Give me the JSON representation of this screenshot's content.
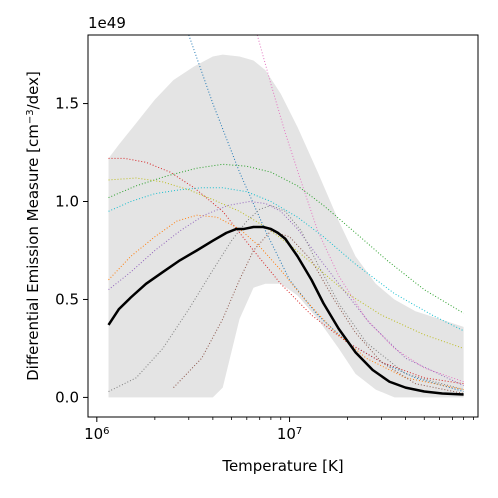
{
  "chart_data": {
    "type": "line",
    "xlabel": "Temperature [K]",
    "ylabel": "Differential Emission Measure [cm^-3/dex]",
    "ylabel_prefix": "Differential Emission Measure [cm",
    "ylabel_sup": "−3",
    "ylabel_suffix": "/dex]",
    "y_offset_text": "1e49",
    "x_scale": "log",
    "xlim": [
      900000,
      95000000
    ],
    "ylim": [
      -0.1,
      1.85
    ],
    "x_ticks": [
      {
        "value": 1000000,
        "base": "10",
        "exp": "6"
      },
      {
        "value": 10000000,
        "base": "10",
        "exp": "7"
      }
    ],
    "y_ticks": [
      {
        "value": 0.0,
        "label": "0.0"
      },
      {
        "value": 0.5,
        "label": "0.5"
      },
      {
        "value": 1.0,
        "label": "1.0"
      },
      {
        "value": 1.5,
        "label": "1.5"
      }
    ],
    "grid": false,
    "band": {
      "color": "#e4e4e4",
      "x": [
        1150000,
        1300000,
        1600000,
        2000000,
        2500000,
        3200000,
        4000000,
        4500000,
        5500000,
        6500000,
        7500000,
        9000000,
        11000000,
        14000000,
        18000000,
        22000000,
        28000000,
        35000000,
        45000000,
        60000000,
        80000000
      ],
      "upper": [
        1.22,
        1.29,
        1.4,
        1.52,
        1.62,
        1.69,
        1.74,
        1.75,
        1.74,
        1.72,
        1.67,
        1.55,
        1.38,
        1.15,
        0.9,
        0.72,
        0.58,
        0.5,
        0.44,
        0.4,
        0.36
      ],
      "lower": [
        0.0,
        0.0,
        0.0,
        0.0,
        0.0,
        0.0,
        0.0,
        0.05,
        0.4,
        0.56,
        0.58,
        0.58,
        0.52,
        0.4,
        0.25,
        0.12,
        0.04,
        0.0,
        0.0,
        0.0,
        0.0
      ]
    },
    "mean": {
      "color": "#000000",
      "x": [
        1150000,
        1300000,
        1500000,
        1800000,
        2200000,
        2700000,
        3300000,
        4000000,
        4700000,
        5300000,
        5800000,
        6500000,
        7300000,
        8000000,
        8700000,
        9500000,
        11000000,
        13000000,
        15000000,
        18000000,
        22000000,
        27000000,
        33000000,
        40000000,
        50000000,
        62000000,
        80000000
      ],
      "y": [
        0.37,
        0.45,
        0.51,
        0.58,
        0.64,
        0.7,
        0.75,
        0.8,
        0.84,
        0.86,
        0.86,
        0.87,
        0.87,
        0.86,
        0.84,
        0.81,
        0.72,
        0.6,
        0.48,
        0.35,
        0.23,
        0.14,
        0.08,
        0.05,
        0.03,
        0.02,
        0.015
      ]
    },
    "series": [
      {
        "color": "#1f77b4",
        "x": [
          3000000,
          4000000,
          5500000,
          7500000,
          10000000,
          14000000,
          20000000,
          30000000,
          45000000,
          80000000
        ],
        "y": [
          1.85,
          1.5,
          1.15,
          0.85,
          0.6,
          0.42,
          0.28,
          0.18,
          0.1,
          0.03
        ]
      },
      {
        "color": "#e377c2",
        "x": [
          6800000,
          8000000,
          9500000,
          11500000,
          14000000,
          18000000,
          25000000,
          35000000,
          50000000,
          80000000
        ],
        "y": [
          1.85,
          1.6,
          1.35,
          1.1,
          0.85,
          0.62,
          0.4,
          0.25,
          0.15,
          0.08
        ]
      },
      {
        "color": "#d62728",
        "x": [
          1150000,
          1400000,
          1800000,
          2400000,
          3200000,
          4500000,
          6500000,
          9000000,
          13000000,
          20000000,
          30000000,
          50000000,
          80000000
        ],
        "y": [
          1.22,
          1.22,
          1.2,
          1.15,
          1.07,
          0.95,
          0.75,
          0.58,
          0.42,
          0.28,
          0.18,
          0.1,
          0.07
        ]
      },
      {
        "color": "#2ca02c",
        "x": [
          1150000,
          1600000,
          2300000,
          3300000,
          4500000,
          6000000,
          8000000,
          11000000,
          15000000,
          22000000,
          32000000,
          50000000,
          80000000
        ],
        "y": [
          1.02,
          1.08,
          1.13,
          1.17,
          1.19,
          1.18,
          1.15,
          1.08,
          0.98,
          0.84,
          0.7,
          0.55,
          0.43
        ]
      },
      {
        "color": "#bcbd22",
        "x": [
          1150000,
          1600000,
          2200000,
          3000000,
          4000000,
          5500000,
          7500000,
          10000000,
          14000000,
          20000000,
          30000000,
          50000000,
          80000000
        ],
        "y": [
          1.11,
          1.12,
          1.1,
          1.06,
          1.01,
          0.95,
          0.87,
          0.78,
          0.66,
          0.53,
          0.42,
          0.32,
          0.25
        ]
      },
      {
        "color": "#17becf",
        "x": [
          1150000,
          1500000,
          2000000,
          2700000,
          3500000,
          4500000,
          6000000,
          8000000,
          11000000,
          15000000,
          22000000,
          35000000,
          55000000,
          80000000
        ],
        "y": [
          0.95,
          1.0,
          1.04,
          1.06,
          1.07,
          1.07,
          1.05,
          1.0,
          0.92,
          0.82,
          0.68,
          0.53,
          0.42,
          0.34
        ]
      },
      {
        "color": "#ff7f0e",
        "x": [
          1150000,
          1500000,
          2000000,
          2600000,
          3300000,
          4200000,
          5500000,
          7000000,
          9000000,
          12000000,
          17000000,
          25000000,
          40000000,
          80000000
        ],
        "y": [
          0.6,
          0.72,
          0.82,
          0.9,
          0.93,
          0.92,
          0.86,
          0.77,
          0.65,
          0.5,
          0.34,
          0.2,
          0.1,
          0.04
        ]
      },
      {
        "color": "#9467bd",
        "x": [
          1150000,
          1500000,
          2000000,
          2700000,
          3600000,
          4800000,
          6200000,
          7500000,
          9000000,
          11000000,
          14000000,
          19000000,
          26000000,
          40000000,
          80000000
        ],
        "y": [
          0.55,
          0.64,
          0.75,
          0.85,
          0.93,
          0.98,
          1.0,
          0.99,
          0.95,
          0.86,
          0.72,
          0.55,
          0.38,
          0.2,
          0.06
        ]
      },
      {
        "color": "#7f7f7f",
        "x": [
          1150000,
          1600000,
          2200000,
          3000000,
          4000000,
          5000000,
          6000000,
          7000000,
          8000000,
          9500000,
          11500000,
          14000000,
          18000000,
          25000000,
          40000000,
          80000000
        ],
        "y": [
          0.03,
          0.1,
          0.25,
          0.45,
          0.65,
          0.8,
          0.9,
          0.96,
          0.98,
          0.95,
          0.85,
          0.68,
          0.48,
          0.28,
          0.12,
          0.04
        ]
      },
      {
        "color": "#8c564b",
        "x": [
          2500000,
          3500000,
          4500000,
          5500000,
          6500000,
          8000000,
          10000000,
          13000000,
          17000000,
          22000000,
          30000000,
          45000000,
          80000000
        ],
        "y": [
          0.05,
          0.2,
          0.4,
          0.6,
          0.75,
          0.85,
          0.82,
          0.7,
          0.5,
          0.33,
          0.18,
          0.07,
          0.02
        ]
      }
    ]
  }
}
